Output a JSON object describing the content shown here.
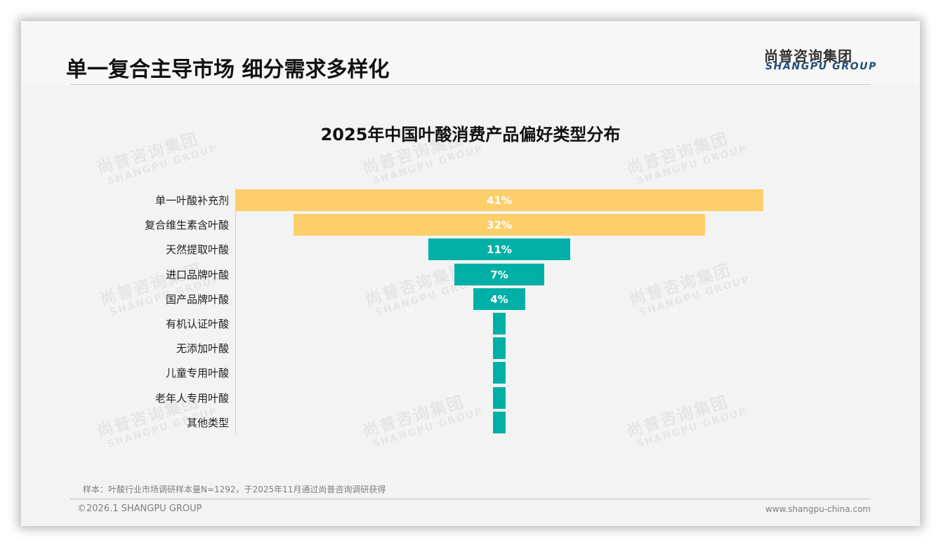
{
  "header": {
    "title": "单一复合主导市场 细分需求多样化",
    "logo_cn": "尚普咨询集团",
    "logo_en": "SHANGPU GROUP"
  },
  "watermark": {
    "cn": "尚普咨询集团",
    "en": "SHANGPU GROUP"
  },
  "colors": {
    "top_bars": "#FDCF6A",
    "other_bars": "#00B0A6",
    "background": "#F3F3F3",
    "logo_en": "#1F4E79"
  },
  "chart_data": {
    "type": "bar",
    "orientation": "horizontal-funnel",
    "title": "2025年中国叶酸消费产品偏好类型分布",
    "categories": [
      "单一叶酸补充剂",
      "复合维生素含叶酸",
      "天然提取叶酸",
      "进口品牌叶酸",
      "国产品牌叶酸",
      "有机认证叶酸",
      "无添加叶酸",
      "儿童专用叶酸",
      "老年人专用叶酸",
      "其他类型"
    ],
    "values": [
      41,
      32,
      11,
      7,
      4,
      1,
      1,
      1,
      1,
      1
    ],
    "value_labels": [
      "41%",
      "32%",
      "11%",
      "7%",
      "4%",
      "",
      "",
      "",
      "",
      ""
    ],
    "unit": "%",
    "xlabel": "",
    "ylabel": "",
    "grid": false,
    "legend": null,
    "bar_colors": [
      "#FDCF6A",
      "#FDCF6A",
      "#00B0A6",
      "#00B0A6",
      "#00B0A6",
      "#00B0A6",
      "#00B0A6",
      "#00B0A6",
      "#00B0A6",
      "#00B0A6"
    ]
  },
  "footer": {
    "note": "样本：叶酸行业市场调研样本量N=1292，于2025年11月通过尚普咨询调研获得",
    "copyright": "©2026.1 SHANGPU GROUP",
    "website": "www.shangpu-china.com"
  }
}
